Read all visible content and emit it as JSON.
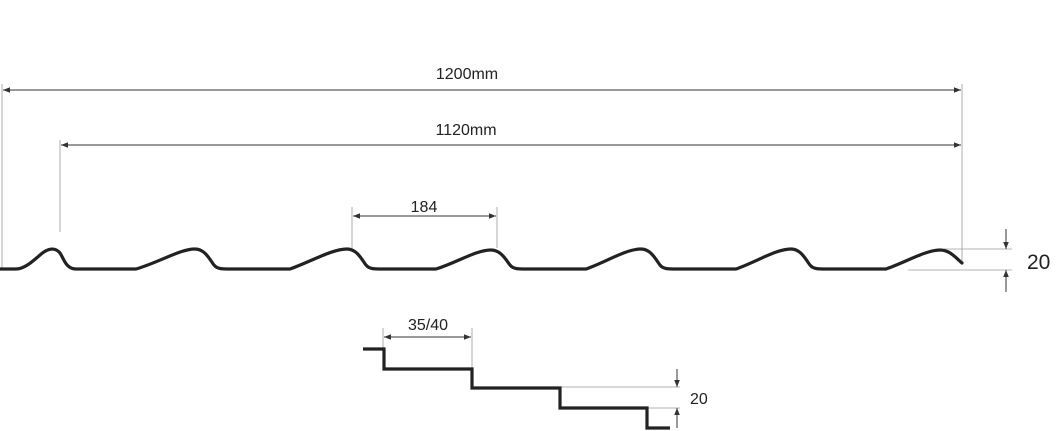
{
  "profile_view": {
    "overall_width_label": "1200mm",
    "effective_width_label": "1120mm",
    "pitch_label": "184",
    "height_label": "20"
  },
  "step_view": {
    "step_length_label": "35/40",
    "step_height_label": "20"
  },
  "colors": {
    "profile_line": "#222222",
    "dimension_line": "#333333",
    "extension_line": "#9a9a9a",
    "background": "#ffffff"
  }
}
